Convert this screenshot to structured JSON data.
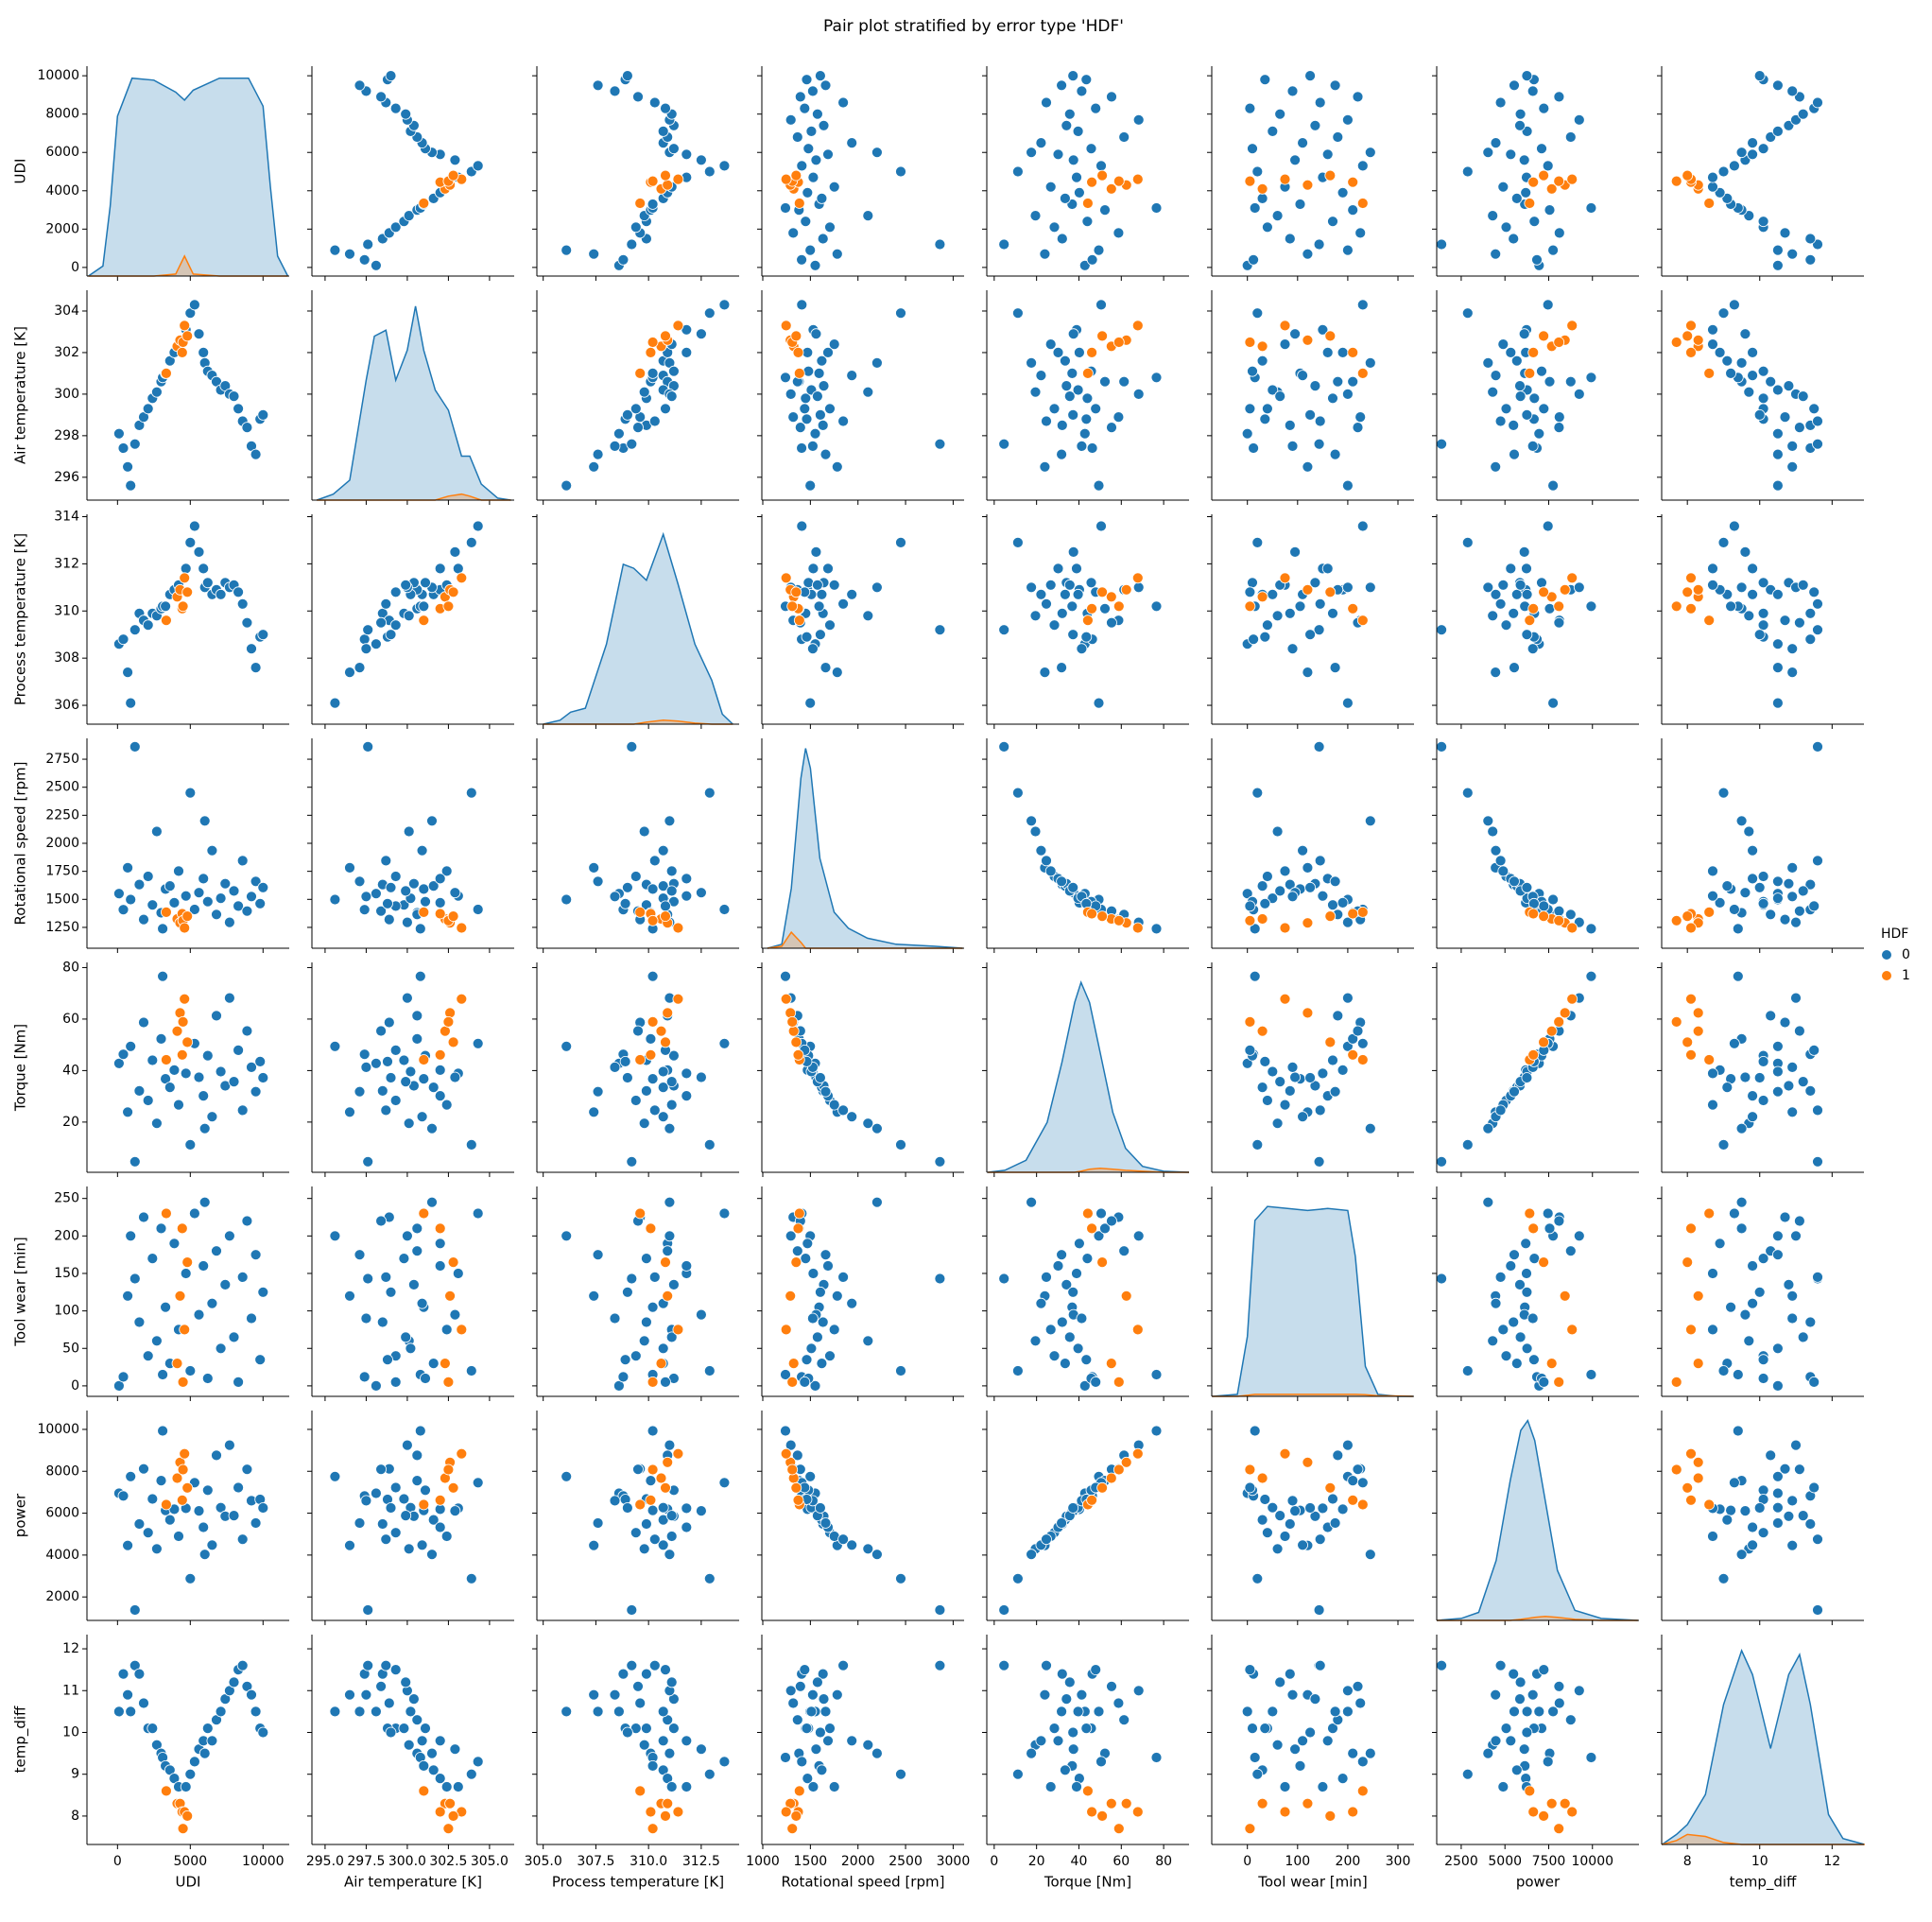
{
  "chart_data": {
    "type": "pairplot",
    "title": "Pair plot stratified by error type 'HDF'",
    "legend_title": "HDF",
    "legend_position": "right",
    "density_lim": [
      0,
      1.05
    ],
    "variables": [
      {
        "label": "UDI",
        "xlim": [
          -2100,
          11800
        ],
        "ylim": [
          -450,
          10500
        ],
        "xticks": [
          0,
          5000,
          10000
        ],
        "yticks": [
          0,
          2000,
          4000,
          6000,
          8000,
          10000
        ],
        "density": {
          "x": [
            -2000,
            -1000,
            -500,
            0,
            1000,
            2500,
            4000,
            4600,
            5200,
            7000,
            9000,
            10000,
            10500,
            11000,
            11700
          ],
          "values": [
            [
              0,
              0.05,
              0.35,
              0.8,
              0.99,
              0.98,
              0.92,
              0.88,
              0.93,
              0.99,
              0.99,
              0.85,
              0.45,
              0.1,
              0
            ],
            [
              0,
              0,
              0,
              0,
              0,
              0,
              0.01,
              0.1,
              0.01,
              0,
              0,
              0,
              0,
              0,
              0
            ]
          ]
        }
      },
      {
        "label": "Air temperature [K]",
        "xlim": [
          294.2,
          306.5
        ],
        "ylim": [
          294.9,
          305.0
        ],
        "xticks": [
          {
            "value": 295,
            "label": "295.0"
          },
          297.5,
          {
            "value": 300,
            "label": "300.0"
          },
          302.5,
          {
            "value": 305,
            "label": "305.0"
          }
        ],
        "yticks": [
          296,
          298,
          300,
          302,
          304
        ],
        "density": {
          "x": [
            294.5,
            295.5,
            296.5,
            297.5,
            298.0,
            298.7,
            299.3,
            300.0,
            300.5,
            301.0,
            301.7,
            302.5,
            303.3,
            303.8,
            304.5,
            305.5,
            306.3
          ],
          "values": [
            [
              0,
              0.03,
              0.1,
              0.6,
              0.82,
              0.85,
              0.6,
              0.75,
              0.97,
              0.75,
              0.55,
              0.45,
              0.22,
              0.22,
              0.08,
              0.01,
              0
            ],
            [
              0,
              0,
              0,
              0,
              0,
              0,
              0,
              0,
              0,
              0,
              0,
              0.02,
              0.03,
              0.02,
              0,
              0,
              0
            ]
          ]
        }
      },
      {
        "label": "Process temperature [K]",
        "xlim": [
          304.7,
          314.3
        ],
        "ylim": [
          305.2,
          314.1
        ],
        "xticks": [
          {
            "value": 305,
            "label": "305.0"
          },
          307.5,
          {
            "value": 310,
            "label": "310.0"
          },
          312.5
        ],
        "yticks": [
          306,
          308,
          310,
          312,
          314
        ],
        "density": {
          "x": [
            305,
            305.8,
            306.3,
            307,
            308,
            308.8,
            309.3,
            309.9,
            310.7,
            311.4,
            312.2,
            313,
            313.5,
            314
          ],
          "values": [
            [
              0,
              0.02,
              0.06,
              0.08,
              0.4,
              0.8,
              0.78,
              0.72,
              0.95,
              0.7,
              0.4,
              0.22,
              0.05,
              0
            ],
            [
              0,
              0,
              0,
              0,
              0,
              0,
              0,
              0.01,
              0.02,
              0.015,
              0.005,
              0,
              0,
              0
            ]
          ]
        }
      },
      {
        "label": "Rotational speed [rpm]",
        "xlim": [
          990,
          3115
        ],
        "ylim": [
          1064,
          2936
        ],
        "xticks": [
          1000,
          1500,
          2000,
          2500,
          3000
        ],
        "yticks": [
          1250,
          1500,
          1750,
          2000,
          2250,
          2500,
          2750
        ],
        "density": {
          "x": [
            1050,
            1200,
            1300,
            1400,
            1450,
            1500,
            1600,
            1750,
            1900,
            2100,
            2400,
            2800,
            3100
          ],
          "values": [
            [
              0,
              0.02,
              0.3,
              0.85,
              1.0,
              0.9,
              0.45,
              0.18,
              0.1,
              0.05,
              0.02,
              0.01,
              0
            ],
            [
              0,
              0.01,
              0.08,
              0.03,
              0,
              0,
              0,
              0,
              0,
              0,
              0,
              0,
              0
            ]
          ]
        }
      },
      {
        "label": "Torque [Nm]",
        "xlim": [
          -3.5,
          92
        ],
        "ylim": [
          0.5,
          82
        ],
        "xticks": [
          0,
          20,
          40,
          60,
          80
        ],
        "yticks": [
          20,
          40,
          60,
          80
        ],
        "density": {
          "x": [
            -3,
            5,
            15,
            25,
            32,
            38,
            41,
            45,
            50,
            56,
            62,
            70,
            80,
            92
          ],
          "values": [
            [
              0,
              0.01,
              0.06,
              0.25,
              0.55,
              0.85,
              0.95,
              0.85,
              0.6,
              0.3,
              0.12,
              0.03,
              0.005,
              0
            ],
            [
              0,
              0,
              0,
              0,
              0,
              0,
              0.005,
              0.015,
              0.02,
              0.015,
              0.01,
              0.005,
              0,
              0
            ]
          ]
        }
      },
      {
        "label": "Tool wear [min]",
        "xlim": [
          -71,
          332
        ],
        "ylim": [
          -14,
          266
        ],
        "xticks": [
          0,
          100,
          200,
          300
        ],
        "yticks": [
          0,
          50,
          100,
          150,
          200,
          250
        ],
        "density": {
          "x": [
            -70,
            -20,
            0,
            15,
            40,
            80,
            120,
            160,
            200,
            215,
            235,
            260,
            300,
            330
          ],
          "values": [
            [
              0,
              0.01,
              0.3,
              0.88,
              0.95,
              0.94,
              0.93,
              0.94,
              0.93,
              0.7,
              0.15,
              0.01,
              0,
              0
            ],
            [
              0,
              0,
              0.005,
              0.01,
              0.01,
              0.01,
              0.01,
              0.01,
              0.01,
              0.01,
              0.008,
              0.003,
              0.002,
              0
            ]
          ]
        }
      },
      {
        "label": "power",
        "xlim": [
          1100,
          12660
        ],
        "ylim": [
          880,
          10900
        ],
        "xticks": [
          2500,
          5000,
          7500,
          10000
        ],
        "yticks": [
          2000,
          4000,
          6000,
          8000,
          10000
        ],
        "density": {
          "x": [
            1100,
            2500,
            3500,
            4500,
            5300,
            5900,
            6300,
            6700,
            7300,
            8000,
            9000,
            10500,
            12600
          ],
          "values": [
            [
              0,
              0.01,
              0.04,
              0.3,
              0.7,
              0.95,
              1.0,
              0.9,
              0.6,
              0.25,
              0.05,
              0.01,
              0
            ],
            [
              0,
              0,
              0,
              0,
              0,
              0.005,
              0.01,
              0.015,
              0.02,
              0.015,
              0.005,
              0,
              0
            ]
          ]
        }
      },
      {
        "label": "temp_diff",
        "xlim": [
          7.29,
          12.88
        ],
        "ylim": [
          7.32,
          12.34
        ],
        "xticks": [
          8,
          10,
          12
        ],
        "yticks": [
          8,
          9,
          10,
          11,
          12
        ],
        "density": {
          "x": [
            7.3,
            7.7,
            8.0,
            8.5,
            9.0,
            9.5,
            9.8,
            10.3,
            10.8,
            11.1,
            11.4,
            11.9,
            12.3,
            12.9
          ],
          "values": [
            [
              0,
              0.05,
              0.1,
              0.25,
              0.7,
              0.97,
              0.85,
              0.48,
              0.85,
              0.95,
              0.7,
              0.15,
              0.03,
              0
            ],
            [
              0,
              0.02,
              0.05,
              0.04,
              0.01,
              0,
              0,
              0,
              0,
              0,
              0,
              0,
              0,
              0
            ]
          ]
        }
      }
    ],
    "series": [
      {
        "name": "0",
        "color": "#1f77b4",
        "points": [
          [
            100,
            298.1,
            308.6,
            1551,
            42.8,
            0,
            6950,
            10.5
          ],
          [
            400,
            297.4,
            308.8,
            1408,
            46.3,
            12,
            6826,
            11.4
          ],
          [
            700,
            296.5,
            307.4,
            1782,
            23.9,
            120,
            4460,
            10.9
          ],
          [
            900,
            295.6,
            306.1,
            1498,
            49.4,
            200,
            7748,
            10.5
          ],
          [
            1200,
            297.6,
            309.2,
            2861,
            4.6,
            143,
            1378,
            11.6
          ],
          [
            1500,
            298.5,
            309.9,
            1632,
            32.1,
            85,
            5485,
            11.4
          ],
          [
            1800,
            298.9,
            309.6,
            1320,
            58.7,
            225,
            8113,
            10.7
          ],
          [
            2100,
            299.3,
            309.4,
            1705,
            28.4,
            40,
            5070,
            10.1
          ],
          [
            2400,
            299.8,
            309.9,
            1450,
            44.0,
            170,
            6680,
            10.1
          ],
          [
            2700,
            300.1,
            309.8,
            2105,
            19.5,
            60,
            4298,
            9.7
          ],
          [
            3000,
            300.6,
            310.1,
            1380,
            52.3,
            210,
            7557,
            9.5
          ],
          [
            3100,
            300.8,
            310.2,
            1238,
            76.6,
            15,
            9929,
            9.4
          ],
          [
            3300,
            301.0,
            310.2,
            1592,
            36.8,
            105,
            6134,
            9.2
          ],
          [
            3600,
            301.6,
            310.7,
            1620,
            33.5,
            30,
            5682,
            9.1
          ],
          [
            3900,
            302.0,
            310.9,
            1470,
            40.2,
            190,
            6187,
            8.9
          ],
          [
            4200,
            302.4,
            311.1,
            1752,
            26.7,
            75,
            4898,
            8.7
          ],
          [
            4700,
            303.1,
            311.8,
            1530,
            38.9,
            150,
            6231,
            8.7
          ],
          [
            5000,
            303.9,
            312.9,
            2450,
            11.2,
            20,
            2873,
            9.0
          ],
          [
            5300,
            304.3,
            313.6,
            1410,
            50.5,
            230,
            7456,
            9.3
          ],
          [
            5600,
            302.9,
            312.5,
            1560,
            37.4,
            95,
            6109,
            9.6
          ],
          [
            5900,
            302.0,
            311.8,
            1685,
            30.2,
            160,
            5328,
            9.8
          ],
          [
            6000,
            301.5,
            311.0,
            2200,
            17.5,
            245,
            4031,
            9.5
          ],
          [
            6200,
            301.1,
            311.2,
            1480,
            45.8,
            10,
            7097,
            10.1
          ],
          [
            6500,
            300.9,
            310.7,
            1935,
            22.1,
            110,
            4478,
            9.8
          ],
          [
            6800,
            300.6,
            310.9,
            1365,
            61.3,
            180,
            8761,
            10.3
          ],
          [
            7100,
            300.2,
            310.7,
            1510,
            39.6,
            50,
            6263,
            10.5
          ],
          [
            7400,
            300.4,
            311.2,
            1640,
            34.1,
            135,
            5855,
            10.8
          ],
          [
            7700,
            300.0,
            311.0,
            1295,
            68.2,
            200,
            9247,
            11.0
          ],
          [
            8000,
            299.9,
            311.1,
            1575,
            35.7,
            65,
            5887,
            11.2
          ],
          [
            8300,
            299.3,
            310.8,
            1440,
            47.9,
            5,
            7222,
            11.5
          ],
          [
            8600,
            298.7,
            310.3,
            1845,
            24.6,
            145,
            4752,
            11.6
          ],
          [
            8900,
            298.4,
            309.5,
            1395,
            55.4,
            220,
            8092,
            11.1
          ],
          [
            9200,
            297.5,
            308.4,
            1525,
            41.3,
            90,
            6595,
            10.9
          ],
          [
            9500,
            297.1,
            307.6,
            1660,
            31.8,
            175,
            5528,
            10.5
          ],
          [
            9800,
            298.8,
            308.9,
            1462,
            43.5,
            35,
            6659,
            10.1
          ],
          [
            10000,
            299.0,
            309.0,
            1605,
            37.2,
            125,
            6251,
            10.0
          ]
        ]
      },
      {
        "name": "1",
        "color": "#ff7f0e",
        "points": [
          [
            3350,
            301.0,
            309.6,
            1385,
            44.2,
            230,
            6410,
            8.6
          ],
          [
            4100,
            302.3,
            310.6,
            1325,
            55.3,
            30,
            7672,
            8.3
          ],
          [
            4300,
            302.6,
            310.9,
            1290,
            62.4,
            120,
            8428,
            8.3
          ],
          [
            4450,
            302.0,
            310.1,
            1372,
            46.1,
            210,
            6622,
            8.1
          ],
          [
            4500,
            302.5,
            310.2,
            1310,
            58.9,
            5,
            8078,
            7.7
          ],
          [
            4600,
            303.3,
            311.4,
            1245,
            67.8,
            75,
            8838,
            8.1
          ],
          [
            4800,
            302.8,
            310.8,
            1350,
            51.0,
            165,
            7208,
            8.0
          ]
        ]
      }
    ]
  }
}
